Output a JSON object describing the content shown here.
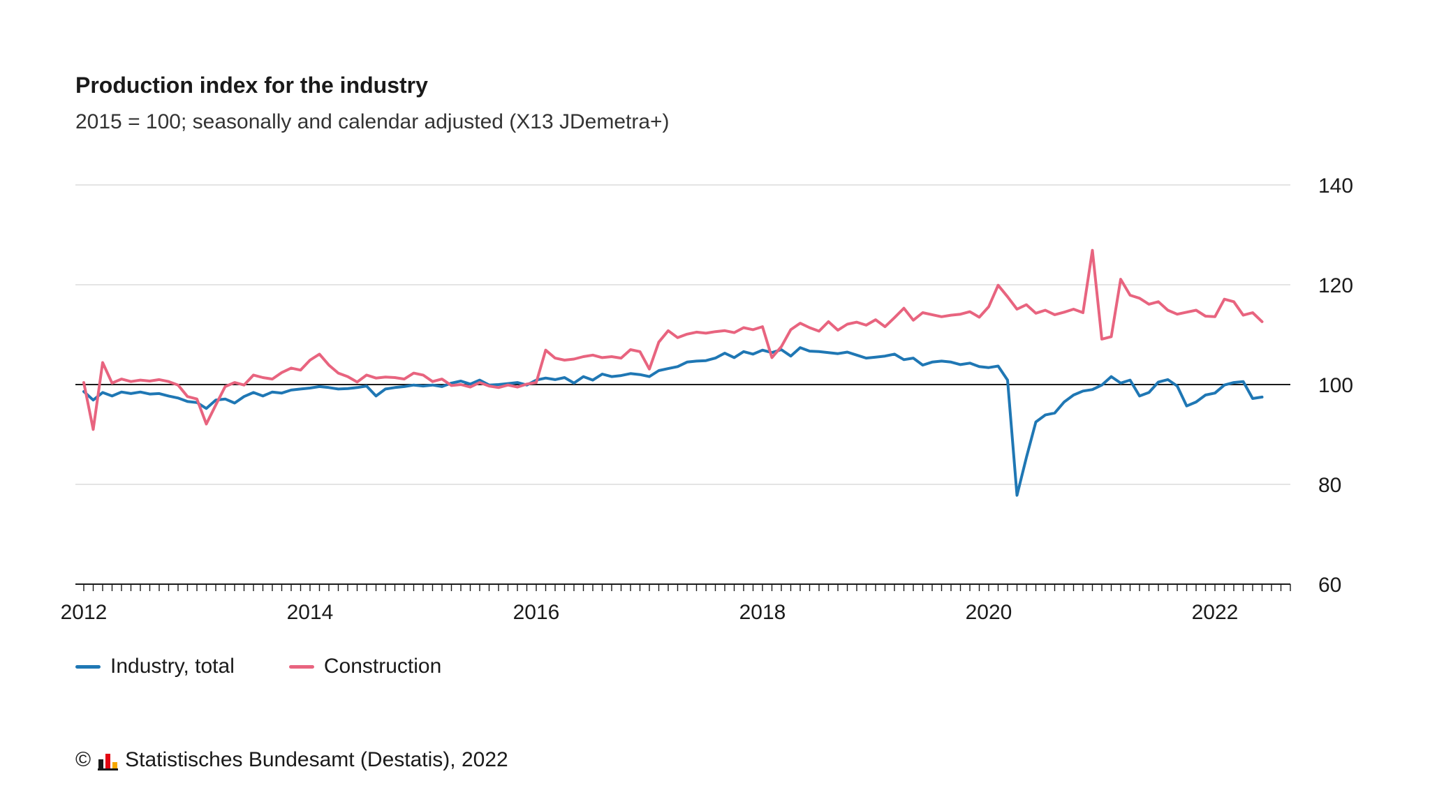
{
  "header": {
    "title": "Production index for the industry",
    "subtitle": "2015 = 100; seasonally and calendar adjusted (X13 JDemetra+)"
  },
  "chart_data": {
    "type": "line",
    "title": "Production index for the industry",
    "subtitle": "2015 = 100; seasonally and calendar adjusted (X13 JDemetra+)",
    "x_unit": "month",
    "start": {
      "year": 2012,
      "month": 1
    },
    "axis_months": 128,
    "x_tick_years": [
      2012,
      2014,
      2016,
      2018,
      2020,
      2022
    ],
    "ylim": [
      60,
      140
    ],
    "yticks": [
      60,
      80,
      100,
      120,
      140
    ],
    "baseline": 100,
    "grid": "horizontal",
    "legend_position": "bottom",
    "series": [
      {
        "name": "Industry, total",
        "color": "#1f77b4",
        "values": [
          98.6,
          96.9,
          98.4,
          97.7,
          98.5,
          98.2,
          98.5,
          98.1,
          98.2,
          97.7,
          97.3,
          96.6,
          96.4,
          95.2,
          96.9,
          97.1,
          96.3,
          97.6,
          98.4,
          97.7,
          98.5,
          98.3,
          98.9,
          99.1,
          99.3,
          99.6,
          99.4,
          99.1,
          99.2,
          99.4,
          99.7,
          97.7,
          99.1,
          99.4,
          99.6,
          99.9,
          99.7,
          99.9,
          99.6,
          100.3,
          100.7,
          100.1,
          100.9,
          99.9,
          100.0,
          100.2,
          100.4,
          99.9,
          100.9,
          101.3,
          101.0,
          101.4,
          100.3,
          101.6,
          100.9,
          102.1,
          101.6,
          101.8,
          102.2,
          102.0,
          101.6,
          102.8,
          103.2,
          103.6,
          104.5,
          104.7,
          104.8,
          105.3,
          106.3,
          105.4,
          106.6,
          106.1,
          106.9,
          106.4,
          107.0,
          105.7,
          107.4,
          106.7,
          106.6,
          106.4,
          106.2,
          106.5,
          105.9,
          105.3,
          105.5,
          105.7,
          106.1,
          105.0,
          105.3,
          103.9,
          104.5,
          104.7,
          104.5,
          104.0,
          104.3,
          103.6,
          103.4,
          103.7,
          100.9,
          77.8,
          85.4,
          92.5,
          93.9,
          94.3,
          96.5,
          97.9,
          98.7,
          99.0,
          99.9,
          101.6,
          100.3,
          100.9,
          97.7,
          98.4,
          100.5,
          101.0,
          99.7,
          95.7,
          96.5,
          97.9,
          98.3,
          99.9,
          100.4,
          100.6,
          97.2,
          97.5
        ]
      },
      {
        "name": "Construction",
        "color": "#e8647f",
        "values": [
          100.4,
          91.0,
          104.4,
          100.3,
          101.1,
          100.6,
          100.9,
          100.7,
          101.0,
          100.6,
          99.9,
          97.6,
          97.1,
          92.1,
          95.9,
          99.6,
          100.4,
          99.9,
          101.9,
          101.4,
          101.1,
          102.4,
          103.3,
          102.9,
          104.9,
          106.1,
          103.9,
          102.3,
          101.6,
          100.5,
          101.9,
          101.3,
          101.5,
          101.4,
          101.1,
          102.3,
          101.9,
          100.6,
          101.1,
          99.8,
          100.0,
          99.5,
          100.4,
          99.7,
          99.4,
          99.9,
          99.5,
          100.1,
          100.4,
          106.9,
          105.3,
          104.9,
          105.1,
          105.6,
          105.9,
          105.4,
          105.6,
          105.3,
          107.0,
          106.6,
          103.1,
          108.5,
          110.8,
          109.4,
          110.1,
          110.5,
          110.3,
          110.6,
          110.8,
          110.4,
          111.4,
          111.0,
          111.6,
          105.4,
          107.6,
          111.0,
          112.3,
          111.4,
          110.7,
          112.6,
          110.9,
          112.1,
          112.5,
          111.9,
          113.0,
          111.6,
          113.4,
          115.3,
          112.9,
          114.4,
          114.0,
          113.6,
          113.9,
          114.1,
          114.6,
          113.5,
          115.6,
          119.9,
          117.6,
          115.1,
          116.0,
          114.3,
          114.9,
          114.0,
          114.5,
          115.1,
          114.4,
          126.9,
          109.1,
          109.6,
          121.1,
          117.9,
          117.3,
          116.1,
          116.6,
          114.9,
          114.1,
          114.5,
          114.9,
          113.7,
          113.6,
          117.1,
          116.6,
          113.9,
          114.4,
          112.6
        ]
      }
    ],
    "colors": {
      "grid": "#dcdcdc",
      "axis": "#1a1a1a"
    }
  },
  "legend": {
    "industry_label": "Industry, total",
    "construction_label": "Construction"
  },
  "footer": {
    "symbol": "©",
    "text": "Statistisches Bundesamt (Destatis), 2022"
  }
}
